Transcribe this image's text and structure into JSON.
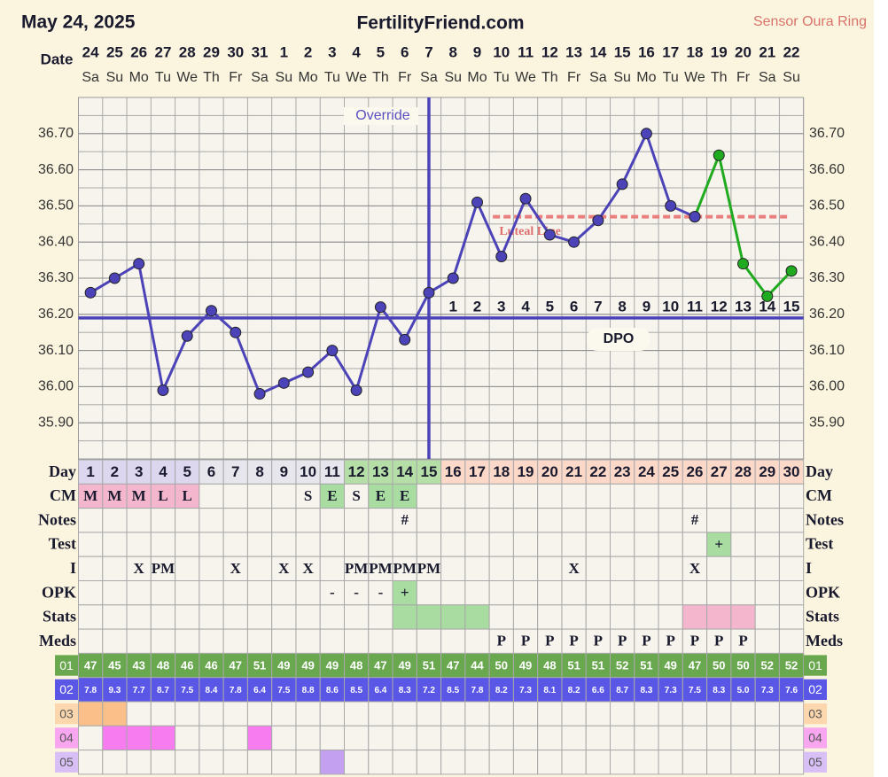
{
  "header": {
    "date": "May 24, 2025",
    "site": "FertilityFriend.com",
    "sensor": "Sensor Oura Ring"
  },
  "chart_data": {
    "type": "line",
    "date_label": "Date",
    "dates": [
      24,
      25,
      26,
      27,
      28,
      29,
      30,
      31,
      1,
      2,
      3,
      4,
      5,
      6,
      7,
      8,
      9,
      10,
      11,
      12,
      13,
      14,
      15,
      16,
      17,
      18,
      19,
      20,
      21,
      22
    ],
    "weekdays": [
      "Sa",
      "Su",
      "Mo",
      "Tu",
      "We",
      "Th",
      "Fr",
      "Sa",
      "Su",
      "Mo",
      "Tu",
      "We",
      "Th",
      "Fr",
      "Sa",
      "Su",
      "Mo",
      "Tu",
      "We",
      "Th",
      "Fr",
      "Sa",
      "Su",
      "Mo",
      "Tu",
      "We",
      "Th",
      "Fr",
      "Sa",
      "Su"
    ],
    "ylim": [
      35.8,
      36.8
    ],
    "yticks": [
      {
        "value": 35.9,
        "label": "35.90"
      },
      {
        "value": 36.0,
        "label": "36.00"
      },
      {
        "value": 36.1,
        "label": "36.10"
      },
      {
        "value": 36.2,
        "label": "36.20"
      },
      {
        "value": 36.3,
        "label": "36.30"
      },
      {
        "value": 36.4,
        "label": "36.40"
      },
      {
        "value": 36.5,
        "label": "36.50"
      },
      {
        "value": 36.6,
        "label": "36.60"
      },
      {
        "value": 36.7,
        "label": "36.70"
      }
    ],
    "series": [
      {
        "color": "#4c43b8",
        "values": [
          36.26,
          36.3,
          36.34,
          35.99,
          36.14,
          36.21,
          36.15,
          35.98,
          36.01,
          36.04,
          36.1,
          35.99,
          36.22,
          36.13,
          36.26,
          36.3,
          36.51,
          36.36,
          36.52,
          36.42,
          36.4,
          36.46,
          36.56,
          36.7,
          36.5,
          36.47,
          null,
          null,
          null,
          null
        ]
      },
      {
        "color": "#1faa1f",
        "values": [
          null,
          null,
          null,
          null,
          null,
          null,
          null,
          null,
          null,
          null,
          null,
          null,
          null,
          null,
          null,
          null,
          null,
          null,
          null,
          null,
          null,
          null,
          null,
          null,
          null,
          36.47,
          36.64,
          36.34,
          36.25,
          36.32
        ]
      }
    ],
    "coverline": 36.19,
    "ovulation_day": 15,
    "override_label": "Override",
    "luteal_line": 36.47,
    "luteal_from_day": 18,
    "luteal_label": "Luteal Line",
    "dpo": [
      null,
      null,
      null,
      null,
      null,
      null,
      null,
      null,
      null,
      null,
      null,
      null,
      null,
      null,
      null,
      1,
      2,
      3,
      4,
      5,
      6,
      7,
      8,
      9,
      10,
      11,
      12,
      13,
      14,
      15
    ],
    "dpo_label": "DPO"
  },
  "table": {
    "rows": [
      {
        "label": "Day",
        "cells": [
          1,
          2,
          3,
          4,
          5,
          6,
          7,
          8,
          9,
          10,
          11,
          12,
          13,
          14,
          15,
          16,
          17,
          18,
          19,
          20,
          21,
          22,
          23,
          24,
          25,
          26,
          27,
          28,
          29,
          30
        ],
        "fills": [
          "#dcd6ee",
          "#dcd6ee",
          "#dcd6ee",
          "#dcd6ee",
          "#dcd6ee",
          "#e6e6ec",
          "#e6e6ec",
          "#e6e6ec",
          "#e6e6ec",
          "#e6e6ec",
          "#e6e6ec",
          "#b5dfa6",
          "#b5dfa6",
          "#b5dfa6",
          "#b5dfa6",
          "#fbd8c8",
          "#fbd8c8",
          "#fbd8c8",
          "#fbd8c8",
          "#fbd8c8",
          "#fbd8c8",
          "#fbd8c8",
          "#fbd8c8",
          "#fbd8c8",
          "#fbd8c8",
          "#fbd8c8",
          "#fbd8c8",
          "#fbd8c8",
          "#fbd8c8",
          "#fbd8c8"
        ]
      },
      {
        "label": "CM",
        "cells": [
          "M",
          "M",
          "M",
          "L",
          "L",
          null,
          null,
          null,
          null,
          "S",
          "E",
          "S",
          "E",
          "E",
          null,
          null,
          null,
          null,
          null,
          null,
          null,
          null,
          null,
          null,
          null,
          null,
          null,
          null,
          null,
          null
        ],
        "fills": [
          "#f4b6cc",
          "#f4b6cc",
          "#f4b6cc",
          "#f4b6cc",
          "#f4b6cc",
          null,
          null,
          null,
          null,
          null,
          "#a8dca0",
          null,
          "#a8dca0",
          "#a8dca0",
          null,
          null,
          null,
          null,
          null,
          null,
          null,
          null,
          null,
          null,
          null,
          null,
          null,
          null,
          null,
          null
        ]
      },
      {
        "label": "Notes",
        "cells": [
          null,
          null,
          null,
          null,
          null,
          null,
          null,
          null,
          null,
          null,
          null,
          null,
          null,
          "#",
          null,
          null,
          null,
          null,
          null,
          null,
          null,
          null,
          null,
          null,
          null,
          "#",
          null,
          null,
          null,
          null
        ]
      },
      {
        "label": "Test",
        "cells": [
          null,
          null,
          null,
          null,
          null,
          null,
          null,
          null,
          null,
          null,
          null,
          null,
          null,
          null,
          null,
          null,
          null,
          null,
          null,
          null,
          null,
          null,
          null,
          null,
          null,
          null,
          "+",
          null,
          null,
          null
        ],
        "fills": [
          null,
          null,
          null,
          null,
          null,
          null,
          null,
          null,
          null,
          null,
          null,
          null,
          null,
          null,
          null,
          null,
          null,
          null,
          null,
          null,
          null,
          null,
          null,
          null,
          null,
          null,
          "#a8dca0",
          null,
          null,
          null
        ]
      },
      {
        "label": "I",
        "cells": [
          null,
          null,
          "X",
          "PM",
          null,
          null,
          "X",
          null,
          "X",
          "X",
          null,
          "PM",
          "PM",
          "PM",
          "PM",
          null,
          null,
          null,
          null,
          null,
          "X",
          null,
          null,
          null,
          null,
          "X",
          null,
          null,
          null,
          null
        ]
      },
      {
        "label": "OPK",
        "cells": [
          null,
          null,
          null,
          null,
          null,
          null,
          null,
          null,
          null,
          null,
          "-",
          "-",
          "-",
          "+",
          null,
          null,
          null,
          null,
          null,
          null,
          null,
          null,
          null,
          null,
          null,
          null,
          null,
          null,
          null,
          null
        ],
        "fills": [
          null,
          null,
          null,
          null,
          null,
          null,
          null,
          null,
          null,
          null,
          null,
          null,
          null,
          "#a8dca0",
          null,
          null,
          null,
          null,
          null,
          null,
          null,
          null,
          null,
          null,
          null,
          null,
          null,
          null,
          null,
          null
        ]
      },
      {
        "label": "Stats",
        "fills": [
          null,
          null,
          null,
          null,
          null,
          null,
          null,
          null,
          null,
          null,
          null,
          null,
          null,
          "#a8dca0",
          "#a8dca0",
          "#a8dca0",
          "#a8dca0",
          null,
          null,
          null,
          null,
          null,
          null,
          null,
          null,
          "#f4b6cc",
          "#f4b6cc",
          "#f4b6cc",
          null,
          null
        ]
      },
      {
        "label": "Meds",
        "cells": [
          null,
          null,
          null,
          null,
          null,
          null,
          null,
          null,
          null,
          null,
          null,
          null,
          null,
          null,
          null,
          null,
          null,
          "P",
          "P",
          "P",
          "P",
          "P",
          "P",
          "P",
          "P",
          "P",
          "P",
          "P",
          null,
          null
        ]
      },
      {
        "label": "01",
        "label_fill": "#6aa84f",
        "label_color": "#ffffff",
        "fill": "#6aa84f",
        "text_color": "#ffffff",
        "cells": [
          47,
          45,
          43,
          48,
          46,
          46,
          47,
          51,
          49,
          49,
          49,
          48,
          47,
          49,
          51,
          47,
          44,
          50,
          49,
          48,
          51,
          51,
          52,
          51,
          49,
          47,
          50,
          50,
          52,
          52
        ]
      },
      {
        "label": "02",
        "label_fill": "#5a57e6",
        "label_color": "#ffffff",
        "fill": "#5a57e6",
        "text_color": "#ffffff",
        "small": true,
        "cells": [
          7.8,
          9.3,
          7.7,
          8.7,
          7.5,
          8.4,
          7.8,
          6.4,
          7.5,
          8.8,
          8.6,
          8.5,
          6.4,
          8.3,
          7.2,
          8.5,
          7.8,
          8.2,
          7.3,
          8.1,
          8.2,
          6.6,
          8.7,
          8.3,
          7.3,
          7.5,
          8.3,
          "5.0",
          7.3,
          7.6
        ]
      },
      {
        "label": "03",
        "label_fill": "#fcd7ae",
        "label_color": "#555555",
        "fills": [
          "#fbbf8a",
          "#fbbf8a",
          null,
          null,
          null,
          null,
          null,
          null,
          null,
          null,
          null,
          null,
          null,
          null,
          null,
          null,
          null,
          null,
          null,
          null,
          null,
          null,
          null,
          null,
          null,
          null,
          null,
          null,
          null,
          null
        ]
      },
      {
        "label": "04",
        "label_fill": "#f8a6ef",
        "label_color": "#555555",
        "fills": [
          null,
          "#f77cef",
          "#f77cef",
          "#f77cef",
          null,
          null,
          null,
          "#f77cef",
          null,
          null,
          null,
          null,
          null,
          null,
          null,
          null,
          null,
          null,
          null,
          null,
          null,
          null,
          null,
          null,
          null,
          null,
          null,
          null,
          null,
          null
        ]
      },
      {
        "label": "05",
        "label_fill": "#d8c0f7",
        "label_color": "#555555",
        "fills": [
          null,
          null,
          null,
          null,
          null,
          null,
          null,
          null,
          null,
          null,
          "#c3a0f0",
          null,
          null,
          null,
          null,
          null,
          null,
          null,
          null,
          null,
          null,
          null,
          null,
          null,
          null,
          null,
          null,
          null,
          null,
          null
        ]
      }
    ]
  }
}
